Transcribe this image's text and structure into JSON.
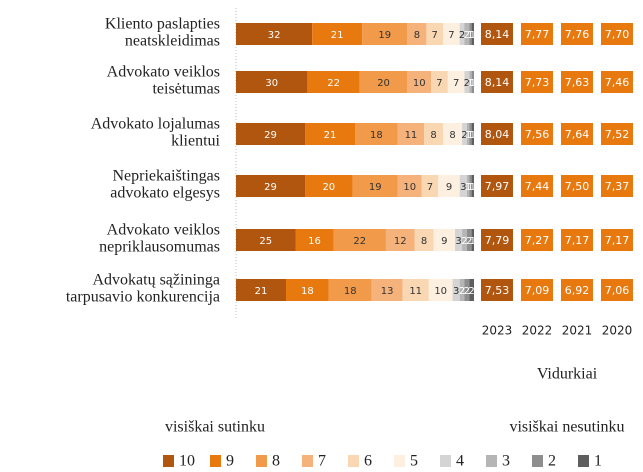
{
  "chart_data": {
    "type": "stacked_bar",
    "categories": [
      [
        "Kliento paslapties",
        "neatskleidimas"
      ],
      [
        "Advokato veiklos",
        "teisėtumas"
      ],
      [
        "Advokato lojalumas",
        "klientui"
      ],
      [
        "Nepriekaištingas",
        "advokato elgesys"
      ],
      [
        "Advokato veiklos",
        "nepriklausomumas"
      ],
      [
        "Advokatų sąžininga",
        "tarpusavio konkurencija"
      ]
    ],
    "xlim": [
      0,
      100
    ],
    "series": [
      {
        "name": "10",
        "color": "#b0560f",
        "values": [
          32,
          30,
          29,
          29,
          25,
          21
        ]
      },
      {
        "name": "9",
        "color": "#e8790f",
        "values": [
          21,
          22,
          21,
          20,
          16,
          18
        ]
      },
      {
        "name": "8",
        "color": "#f19a4a",
        "values": [
          19,
          20,
          18,
          19,
          22,
          18
        ]
      },
      {
        "name": "7",
        "color": "#f5b27a",
        "values": [
          8,
          10,
          11,
          10,
          12,
          13
        ]
      },
      {
        "name": "6",
        "color": "#f9d7b2",
        "values": [
          7,
          7,
          8,
          7,
          8,
          11
        ]
      },
      {
        "name": "5",
        "color": "#fdf0e0",
        "values": [
          7,
          7,
          8,
          9,
          9,
          10
        ]
      },
      {
        "name": "4",
        "color": "#d4d4d4",
        "values": [
          2,
          2,
          2,
          3,
          3,
          3
        ]
      },
      {
        "name": "3",
        "color": "#b5b5b5",
        "values": [
          2,
          1,
          1,
          1,
          2,
          2
        ]
      },
      {
        "name": "2",
        "color": "#8e8e8e",
        "values": [
          1,
          1,
          1,
          1,
          2,
          2
        ]
      },
      {
        "name": "1",
        "color": "#5e5e5e",
        "values": [
          1,
          0,
          1,
          1,
          1,
          2
        ]
      }
    ],
    "averages": {
      "title": "Vidurkiai",
      "columns": [
        {
          "year": "2023",
          "color": "#b0560f",
          "values": [
            8.14,
            8.14,
            8.04,
            7.97,
            7.79,
            7.53
          ],
          "value_labels": [
            "8,14",
            "8,14",
            "8,04",
            "7,97",
            "7,79",
            "7,53"
          ]
        },
        {
          "year": "2022",
          "color": "#e8790f",
          "values": [
            7.77,
            7.73,
            7.56,
            7.44,
            7.27,
            7.09
          ],
          "value_labels": [
            "7,77",
            "7,73",
            "7,56",
            "7,44",
            "7,27",
            "7,09"
          ]
        },
        {
          "year": "2021",
          "color": "#e8790f",
          "values": [
            7.76,
            7.63,
            7.64,
            7.5,
            7.17,
            6.92
          ],
          "value_labels": [
            "7,76",
            "7,63",
            "7,64",
            "7,50",
            "7,17",
            "6,92"
          ]
        },
        {
          "year": "2020",
          "color": "#e8790f",
          "values": [
            7.7,
            7.46,
            7.52,
            7.37,
            7.17,
            7.06
          ],
          "value_labels": [
            "7,70",
            "7,46",
            "7,52",
            "7,37",
            "7,17",
            "7,06"
          ]
        }
      ]
    },
    "legend_left": "visiškai sutinku",
    "legend_right": "visiškai nesutinku"
  }
}
